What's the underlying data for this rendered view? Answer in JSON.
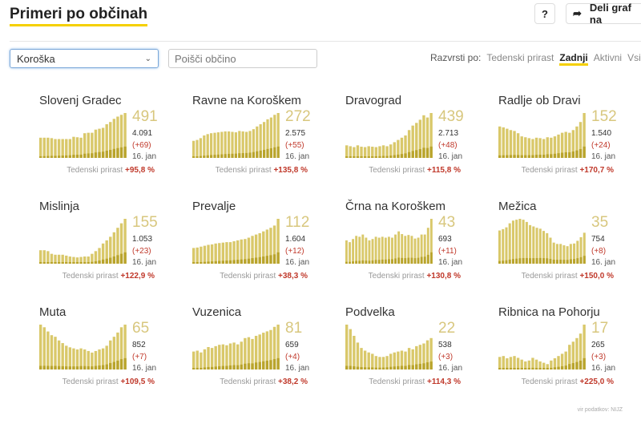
{
  "header": {
    "title": "Primeri po občinah",
    "help_label": "?",
    "share_label": "Deli graf na"
  },
  "filters": {
    "region": "Koroška",
    "search_placeholder": "Poišči občino",
    "sort_label": "Razvrsti po:",
    "sort_options": [
      "Tedenski prirast",
      "Zadnji",
      "Aktivni",
      "Vsi"
    ],
    "sort_active": "Zadnji"
  },
  "colors": {
    "bar": "#d9c86a",
    "bar_dark": "#b9a42c",
    "accent": "#f5d000",
    "increase": "#c0392b"
  },
  "growth_label": "Tedenski prirast",
  "municipalities": [
    {
      "name": "Slovenj Gradec",
      "active": "491",
      "total": "4.091",
      "increase": "(+69)",
      "date": "16. jan",
      "growth": "+95,8 %",
      "series": [
        45,
        45,
        45,
        44,
        42,
        42,
        42,
        42,
        42,
        47,
        46,
        45,
        55,
        56,
        56,
        63,
        65,
        67,
        75,
        80,
        87,
        92,
        96,
        100
      ]
    },
    {
      "name": "Ravne na Koroškem",
      "active": "272",
      "total": "2.575",
      "increase": "(+55)",
      "date": "16. jan",
      "growth": "+135,8 %",
      "series": [
        38,
        40,
        44,
        50,
        53,
        55,
        56,
        57,
        58,
        59,
        59,
        58,
        57,
        60,
        59,
        58,
        60,
        64,
        70,
        75,
        80,
        86,
        90,
        96,
        100
      ]
    },
    {
      "name": "Dravograd",
      "active": "439",
      "total": "2.713",
      "increase": "(+48)",
      "date": "16. jan",
      "growth": "+115,8 %",
      "series": [
        28,
        26,
        24,
        28,
        25,
        24,
        26,
        25,
        24,
        26,
        28,
        26,
        30,
        35,
        40,
        45,
        50,
        62,
        72,
        78,
        85,
        95,
        90,
        100
      ]
    },
    {
      "name": "Radlje ob Dravi",
      "active": "152",
      "total": "1.540",
      "increase": "(+24)",
      "date": "16. jan",
      "growth": "+170,7 %",
      "series": [
        70,
        68,
        65,
        62,
        60,
        55,
        48,
        46,
        44,
        42,
        45,
        44,
        42,
        46,
        45,
        48,
        52,
        56,
        58,
        56,
        62,
        70,
        80,
        100
      ]
    },
    {
      "name": "Mislinja",
      "active": "155",
      "total": "1.053",
      "increase": "(+23)",
      "date": "16. jan",
      "growth": "+122,9 %",
      "series": [
        30,
        30,
        28,
        22,
        20,
        20,
        20,
        18,
        16,
        15,
        14,
        15,
        16,
        16,
        22,
        28,
        35,
        45,
        52,
        60,
        70,
        80,
        90,
        100
      ]
    },
    {
      "name": "Prevalje",
      "active": "112",
      "total": "1.604",
      "increase": "(+12)",
      "date": "16. jan",
      "growth": "+38,3 %",
      "series": [
        35,
        36,
        38,
        40,
        42,
        43,
        45,
        46,
        47,
        48,
        48,
        50,
        52,
        54,
        55,
        58,
        62,
        65,
        68,
        72,
        76,
        80,
        85,
        100
      ]
    },
    {
      "name": "Črna na Koroškem",
      "active": "43",
      "total": "693",
      "increase": "(+11)",
      "date": "16. jan",
      "growth": "+130,8 %",
      "series": [
        52,
        48,
        55,
        62,
        60,
        65,
        58,
        52,
        55,
        60,
        58,
        60,
        58,
        60,
        58,
        65,
        72,
        66,
        62,
        64,
        62,
        56,
        58,
        65,
        65,
        80,
        100
      ]
    },
    {
      "name": "Mežica",
      "active": "35",
      "total": "754",
      "increase": "(+8)",
      "date": "16. jan",
      "growth": "+150,0 %",
      "series": [
        74,
        77,
        81,
        90,
        96,
        98,
        100,
        98,
        93,
        86,
        83,
        80,
        78,
        73,
        68,
        58,
        47,
        44,
        44,
        41,
        39,
        44,
        45,
        51,
        59,
        69
      ]
    },
    {
      "name": "Muta",
      "active": "65",
      "total": "852",
      "increase": "(+7)",
      "date": "16. jan",
      "growth": "+109,5 %",
      "series": [
        85,
        80,
        72,
        65,
        62,
        55,
        50,
        45,
        42,
        40,
        38,
        40,
        38,
        35,
        32,
        35,
        38,
        40,
        45,
        55,
        62,
        70,
        80,
        85
      ]
    },
    {
      "name": "Vuzenica",
      "active": "81",
      "total": "659",
      "increase": "(+4)",
      "date": "16. jan",
      "growth": "+38,2 %",
      "series": [
        40,
        42,
        38,
        45,
        50,
        48,
        52,
        55,
        56,
        54,
        58,
        60,
        56,
        62,
        70,
        72,
        68,
        75,
        78,
        82,
        85,
        88,
        95,
        100
      ]
    },
    {
      "name": "Podvelka",
      "active": "22",
      "total": "538",
      "increase": "(+3)",
      "date": "16. jan",
      "growth": "+114,3 %",
      "series": [
        100,
        90,
        75,
        60,
        48,
        42,
        38,
        35,
        30,
        28,
        28,
        30,
        35,
        38,
        40,
        42,
        40,
        48,
        45,
        52,
        55,
        58,
        65,
        70
      ]
    },
    {
      "name": "Ribnica na Pohorju",
      "active": "17",
      "total": "265",
      "increase": "(+3)",
      "date": "16. jan",
      "growth": "+225,0 %",
      "series": [
        28,
        30,
        25,
        28,
        30,
        26,
        22,
        18,
        20,
        26,
        22,
        18,
        15,
        12,
        20,
        25,
        30,
        35,
        40,
        55,
        62,
        70,
        80,
        100
      ]
    }
  ],
  "source": "vir podatkov: NIJZ"
}
